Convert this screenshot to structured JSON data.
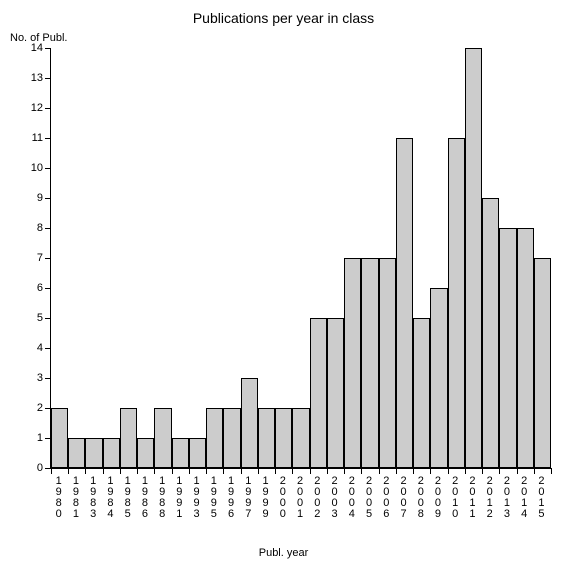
{
  "chart": {
    "type": "bar",
    "title": "Publications per year in class",
    "title_fontsize": 14,
    "ylabel": "No. of Publ.",
    "xlabel": "Publ. year",
    "label_fontsize": 11,
    "background_color": "#ffffff",
    "axis_color": "#000000",
    "bar_fill": "#cccccc",
    "bar_border": "#000000",
    "bar_width": 1.0,
    "ylim": [
      0,
      14
    ],
    "ytick_step": 1,
    "yticks": [
      0,
      1,
      2,
      3,
      4,
      5,
      6,
      7,
      8,
      9,
      10,
      11,
      12,
      13,
      14
    ],
    "categories": [
      "1980",
      "1981",
      "1983",
      "1984",
      "1985",
      "1986",
      "1988",
      "1991",
      "1993",
      "1995",
      "1996",
      "1997",
      "1999",
      "2000",
      "2001",
      "2002",
      "2003",
      "2004",
      "2005",
      "2006",
      "2007",
      "2008",
      "2009",
      "2010",
      "2011",
      "2012",
      "2013",
      "2014",
      "2015"
    ],
    "values": [
      2,
      1,
      1,
      1,
      2,
      1,
      2,
      1,
      1,
      2,
      2,
      3,
      2,
      2,
      2,
      5,
      5,
      7,
      7,
      7,
      11,
      5,
      6,
      11,
      14,
      9,
      8,
      8,
      7
    ]
  }
}
